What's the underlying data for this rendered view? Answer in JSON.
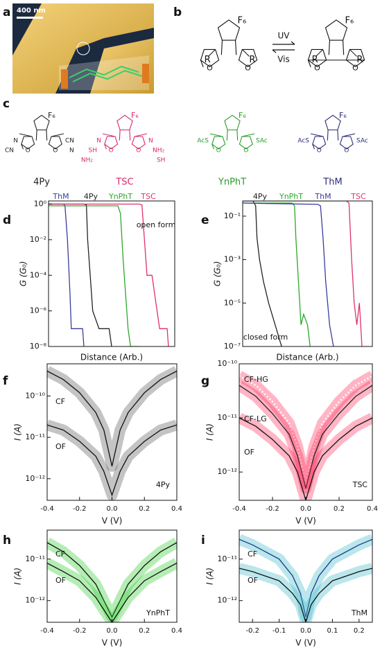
{
  "panel_labels": [
    "a",
    "b",
    "c",
    "d",
    "e",
    "f",
    "g",
    "h",
    "i"
  ],
  "image": {
    "scale_bar": "400 nm"
  },
  "scheme": {
    "fluorine": "F₆",
    "forward": "UV",
    "backward": "Vis",
    "substituent": "R",
    "oxygen": "O"
  },
  "molecules": [
    {
      "name": "4Py",
      "color": "#222222",
      "left": [
        "N",
        "CN"
      ],
      "right": [
        "CN",
        "N"
      ]
    },
    {
      "name": "TSC",
      "color": "#d6286e",
      "left": [
        "N",
        "SH",
        "NH₂"
      ],
      "right": [
        "N",
        "NH₂",
        "SH"
      ]
    },
    {
      "name": "YnPhT",
      "color": "#2a9a2a",
      "left": [
        "AcS"
      ],
      "right": [
        "SAc"
      ]
    },
    {
      "name": "ThM",
      "color": "#2a2a7a",
      "left": [
        "AcS"
      ],
      "right": [
        "SAc"
      ]
    }
  ],
  "chart_data": [
    {
      "type": "line",
      "log_y": true,
      "xlabel": "Distance (Arb.)",
      "ylabel": "G (G₀)",
      "annotation": "open form",
      "xlim": [
        0,
        100
      ],
      "ylim": [
        1e-08,
        1.5
      ],
      "yticks": [
        {
          "value": 1,
          "label": "10⁰"
        },
        {
          "value": 0.01,
          "label": "10⁻²"
        },
        {
          "value": 0.0001,
          "label": "10⁻⁴"
        },
        {
          "value": 1e-06,
          "label": "10⁻⁶"
        },
        {
          "value": 1e-08,
          "label": "10⁻⁸"
        }
      ],
      "series": [
        {
          "name": "ThM",
          "color": "#3a3aa0",
          "x": [
            0,
            12,
            13,
            15,
            17,
            18,
            25,
            27,
            28
          ],
          "values": [
            1,
            1,
            0.8,
            0.01,
            1e-05,
            1e-07,
            1e-07,
            1e-07,
            1e-08
          ]
        },
        {
          "name": "4Py",
          "color": "#222222",
          "x": [
            0,
            28,
            30,
            31,
            33,
            35,
            40,
            45,
            48,
            50
          ],
          "values": [
            1,
            1,
            0.9,
            0.01,
            0.0001,
            1e-06,
            1e-07,
            1e-07,
            1e-07,
            1e-08
          ]
        },
        {
          "name": "YnPhT",
          "color": "#2aa82a",
          "x": [
            0,
            55,
            57,
            59,
            61,
            63,
            65,
            68,
            72
          ],
          "values": [
            0.8,
            0.8,
            0.3,
            0.001,
            1e-05,
            1e-07,
            1e-08,
            1e-08,
            1e-08
          ]
        },
        {
          "name": "TSC",
          "color": "#e0306e",
          "x": [
            0,
            72,
            74,
            76,
            78,
            82,
            86,
            88,
            92,
            94,
            95
          ],
          "values": [
            1,
            1,
            0.9,
            0.01,
            0.0001,
            0.0001,
            1e-06,
            1e-07,
            1e-07,
            1e-07,
            1e-08
          ]
        }
      ]
    },
    {
      "type": "line",
      "log_y": true,
      "xlabel": "Distance (Arb.)",
      "ylabel": "G (G₀)",
      "annotation": "closed form",
      "xlim": [
        0,
        100
      ],
      "ylim": [
        1e-07,
        0.5
      ],
      "yticks": [
        {
          "value": 0.1,
          "label": "10⁻¹"
        },
        {
          "value": 0.001,
          "label": "10⁻³"
        },
        {
          "value": 1e-05,
          "label": "10⁻⁵"
        },
        {
          "value": 1e-07,
          "label": "10⁻⁷"
        }
      ],
      "series": [
        {
          "name": "4Py",
          "color": "#222222",
          "x": [
            0,
            8,
            10,
            11,
            13,
            16,
            20,
            25,
            30
          ],
          "values": [
            0.5,
            0.5,
            0.3,
            0.01,
            0.001,
            0.0001,
            1e-05,
            1e-06,
            1e-07
          ]
        },
        {
          "name": "YnPhT",
          "color": "#2aa82a",
          "x": [
            0,
            38,
            40,
            41,
            43,
            45,
            47,
            50,
            52
          ],
          "values": [
            0.4,
            0.4,
            0.3,
            0.01,
            0.0001,
            1e-06,
            3e-06,
            1e-06,
            1e-07
          ]
        },
        {
          "name": "ThM",
          "color": "#3a3aa0",
          "x": [
            0,
            58,
            60,
            62,
            64,
            67,
            70
          ],
          "values": [
            0.4,
            0.35,
            0.3,
            0.01,
            0.0001,
            1e-06,
            1e-07
          ]
        },
        {
          "name": "TSC",
          "color": "#e0306e",
          "x": [
            0,
            80,
            82,
            84,
            86,
            88,
            90,
            92
          ],
          "values": [
            0.5,
            0.5,
            0.4,
            0.001,
            1e-05,
            1e-06,
            1e-05,
            1e-07
          ]
        }
      ]
    },
    {
      "type": "line",
      "log_y": true,
      "xlabel": "V (V)",
      "ylabel": "I (A)",
      "annotation": "4Py",
      "cloud_color": "#555555",
      "xlim": [
        -0.4,
        0.4
      ],
      "ylim": [
        3e-13,
        6e-10
      ],
      "xticks": [
        -0.4,
        -0.2,
        {
          "value": 0,
          "label": "0.0"
        },
        0.2,
        0.4
      ],
      "yticks": [
        {
          "value": 1e-10,
          "label": "10⁻¹⁰"
        },
        {
          "value": 1e-11,
          "label": "10⁻¹¹"
        },
        {
          "value": 1e-12,
          "label": "10⁻¹²"
        }
      ],
      "x": [
        -0.4,
        -0.3,
        -0.2,
        -0.1,
        -0.05,
        0,
        0.05,
        0.1,
        0.2,
        0.3,
        0.4
      ],
      "series": [
        {
          "name": "CF",
          "color": "#111111",
          "values": [
            4e-10,
            2.5e-10,
            1.2e-10,
            4e-11,
            1.5e-11,
            2e-12,
            1.5e-11,
            4e-11,
            1.2e-10,
            2.5e-10,
            4e-10
          ]
        },
        {
          "name": "OF",
          "color": "#111111",
          "values": [
            2e-11,
            1.5e-11,
            8e-12,
            3.5e-12,
            1.5e-12,
            4e-13,
            1.5e-12,
            3.5e-12,
            8e-12,
            1.5e-11,
            2e-11
          ]
        }
      ]
    },
    {
      "type": "line",
      "log_y": true,
      "xlabel": "V (V)",
      "ylabel": "I (A)",
      "annotation": "TSC",
      "cloud_color": "#ff2a5a",
      "xlim": [
        -0.4,
        0.4
      ],
      "ylim": [
        3e-13,
        1e-10
      ],
      "xticks": [
        -0.4,
        -0.2,
        {
          "value": 0,
          "label": "0.0"
        },
        0.2,
        0.4
      ],
      "yticks": [
        {
          "value": 1e-10,
          "label": "10⁻¹⁰"
        },
        {
          "value": 1e-11,
          "label": "10⁻¹¹"
        },
        {
          "value": 1e-12,
          "label": "10⁻¹²"
        }
      ],
      "x": [
        -0.4,
        -0.3,
        -0.2,
        -0.1,
        -0.05,
        0,
        0.05,
        0.1,
        0.2,
        0.3,
        0.4
      ],
      "series": [
        {
          "name": "CF-HG",
          "color": "#ffffff",
          "style": "dotted",
          "values": [
            6e-11,
            4e-11,
            2e-11,
            8e-12,
            3e-12,
            6e-13,
            3e-12,
            8e-12,
            2e-11,
            4e-11,
            6e-11
          ]
        },
        {
          "name": "CF-LG",
          "color": "#222222",
          "values": [
            4e-11,
            2.5e-11,
            1.2e-11,
            5e-12,
            2e-12,
            5e-13,
            2e-12,
            5e-12,
            1.2e-11,
            2.5e-11,
            4e-11
          ]
        },
        {
          "name": "OF",
          "color": "#111111",
          "values": [
            1e-11,
            7e-12,
            4e-12,
            2e-12,
            1e-12,
            3e-13,
            1e-12,
            2e-12,
            4e-12,
            7e-12,
            1e-11
          ]
        }
      ]
    },
    {
      "type": "line",
      "log_y": true,
      "xlabel": "V (V)",
      "ylabel": "I (A)",
      "annotation": "YnPhT",
      "cloud_color": "#2ccc2c",
      "xlim": [
        -0.4,
        0.4
      ],
      "ylim": [
        3e-13,
        5e-11
      ],
      "xticks": [
        -0.4,
        -0.2,
        {
          "value": 0,
          "label": "0.0"
        },
        0.2,
        0.4
      ],
      "yticks": [
        {
          "value": 1e-11,
          "label": "10⁻¹¹"
        },
        {
          "value": 1e-12,
          "label": "10⁻¹²"
        }
      ],
      "x": [
        -0.4,
        -0.3,
        -0.2,
        -0.1,
        -0.05,
        0,
        0.05,
        0.1,
        0.2,
        0.3,
        0.4
      ],
      "series": [
        {
          "name": "CF",
          "color": "#111111",
          "values": [
            2.5e-11,
            1.5e-11,
            7e-12,
            2.5e-12,
            1e-12,
            4e-13,
            1e-12,
            2.5e-12,
            7e-12,
            1.5e-11,
            2.5e-11
          ]
        },
        {
          "name": "OF",
          "color": "#111111",
          "values": [
            8e-12,
            5e-12,
            3e-12,
            1.2e-12,
            6e-13,
            3e-13,
            6e-13,
            1.2e-12,
            3e-12,
            5e-12,
            8e-12
          ]
        }
      ]
    },
    {
      "type": "line",
      "log_y": true,
      "xlabel": "V (V)",
      "ylabel": "I (A)",
      "annotation": "ThM",
      "cloud_color": "#3ab8c8",
      "xlim": [
        -0.25,
        0.25
      ],
      "ylim": [
        3e-13,
        5e-11
      ],
      "xticks": [
        -0.2,
        -0.1,
        {
          "value": 0,
          "label": "0.0"
        },
        0.1,
        0.2
      ],
      "yticks": [
        {
          "value": 1e-11,
          "label": "10⁻¹¹"
        },
        {
          "value": 1e-12,
          "label": "10⁻¹²"
        }
      ],
      "x": [
        -0.25,
        -0.2,
        -0.1,
        -0.05,
        -0.02,
        0,
        0.02,
        0.05,
        0.1,
        0.2,
        0.25
      ],
      "series": [
        {
          "name": "CF",
          "color": "#1a3a8a",
          "values": [
            3e-11,
            2.2e-11,
            1e-11,
            4e-12,
            1.5e-12,
            4e-13,
            1.5e-12,
            4e-12,
            1e-11,
            2.2e-11,
            3e-11
          ]
        },
        {
          "name": "OF",
          "color": "#111111",
          "values": [
            6e-12,
            5e-12,
            3e-12,
            1.5e-12,
            8e-13,
            3e-13,
            8e-13,
            1.5e-12,
            3e-12,
            5e-12,
            6e-12
          ]
        }
      ]
    }
  ]
}
